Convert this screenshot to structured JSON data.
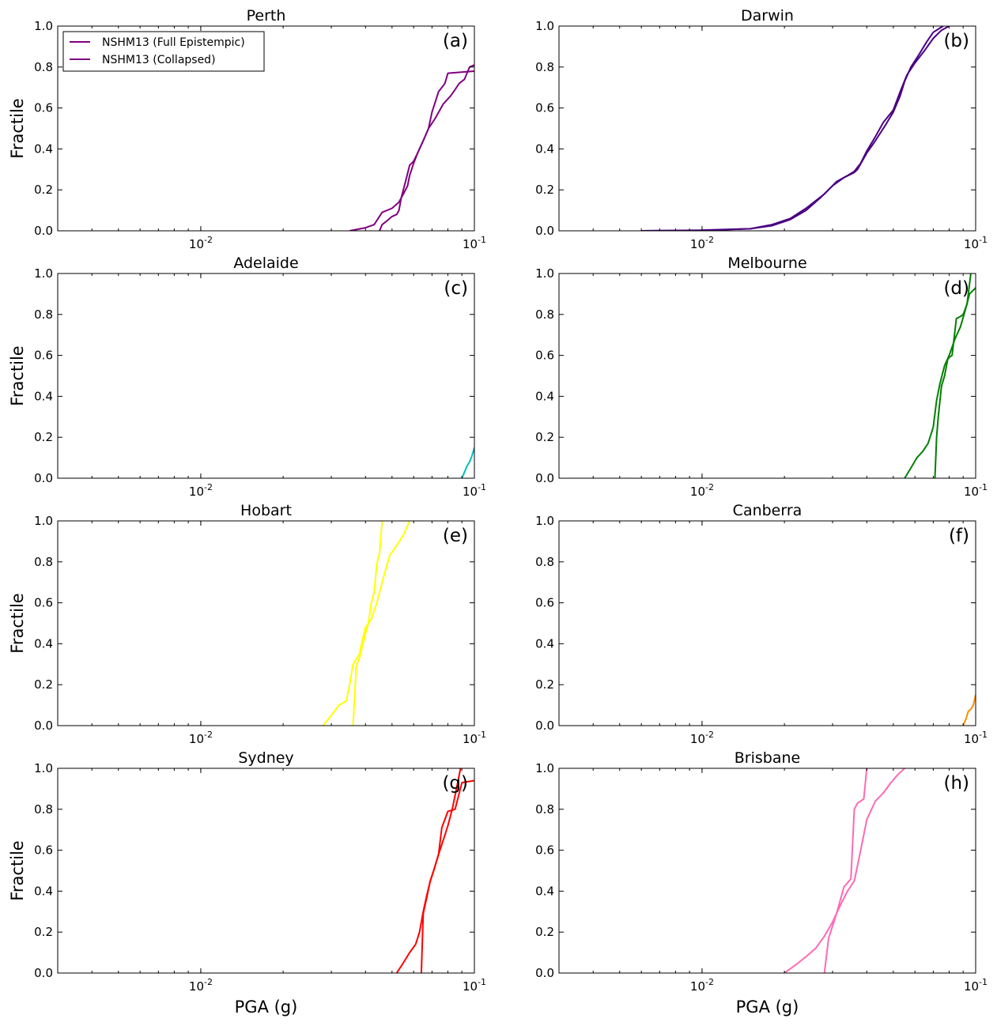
{
  "chart_data": {
    "type": "line",
    "layout": "4x2 grid",
    "xscale": "log",
    "xlim": [
      0.003,
      0.1
    ],
    "ylim": [
      0,
      1
    ],
    "xticks": [
      {
        "value": 0.01,
        "base": "10",
        "exp": "-2"
      },
      {
        "value": 0.1,
        "base": "10",
        "exp": "-1"
      }
    ],
    "yticks": [
      "0.0",
      "0.2",
      "0.4",
      "0.6",
      "0.8",
      "1.0"
    ],
    "ylabel": "Fractile",
    "xlabel": "PGA (g)",
    "legend": {
      "placement": "top-left",
      "entries": [
        "NSHM13 (Full Epistempic)",
        "NSHM13 (Collapsed)"
      ]
    },
    "panels": [
      {
        "title": "Perth",
        "tag": "(a)",
        "color": "#800080",
        "series": [
          {
            "x": [
              0.035,
              0.04,
              0.043,
              0.046,
              0.05,
              0.053,
              0.055,
              0.057,
              0.058,
              0.06,
              0.062,
              0.065,
              0.068,
              0.072,
              0.077,
              0.082,
              0.085,
              0.088,
              0.092,
              0.096,
              0.1
            ],
            "y": [
              0.0,
              0.015,
              0.03,
              0.09,
              0.11,
              0.14,
              0.18,
              0.22,
              0.27,
              0.33,
              0.38,
              0.44,
              0.5,
              0.55,
              0.62,
              0.66,
              0.69,
              0.72,
              0.74,
              0.8,
              0.81
            ]
          },
          {
            "x": [
              0.045,
              0.046,
              0.048,
              0.05,
              0.052,
              0.053,
              0.054,
              0.056,
              0.058,
              0.06,
              0.062,
              0.064,
              0.066,
              0.068,
              0.07,
              0.072,
              0.074,
              0.076,
              0.078,
              0.08,
              0.1
            ],
            "y": [
              0.0,
              0.03,
              0.05,
              0.07,
              0.08,
              0.1,
              0.16,
              0.24,
              0.32,
              0.34,
              0.38,
              0.42,
              0.46,
              0.5,
              0.58,
              0.63,
              0.68,
              0.7,
              0.72,
              0.77,
              0.78
            ]
          }
        ]
      },
      {
        "title": "Darwin",
        "tag": "(b)",
        "color": "#4b0082",
        "series": [
          {
            "x": [
              0.006,
              0.01,
              0.015,
              0.018,
              0.021,
              0.024,
              0.028,
              0.031,
              0.034,
              0.036,
              0.038,
              0.04,
              0.043,
              0.046,
              0.05,
              0.053,
              0.056,
              0.06,
              0.065,
              0.07,
              0.075,
              0.08
            ],
            "y": [
              0.0,
              0.003,
              0.01,
              0.03,
              0.06,
              0.11,
              0.18,
              0.24,
              0.27,
              0.29,
              0.33,
              0.39,
              0.46,
              0.53,
              0.59,
              0.68,
              0.76,
              0.82,
              0.88,
              0.94,
              0.98,
              1.0
            ]
          },
          {
            "x": [
              0.006,
              0.01,
              0.015,
              0.018,
              0.021,
              0.024,
              0.027,
              0.03,
              0.033,
              0.036,
              0.037,
              0.04,
              0.043,
              0.047,
              0.05,
              0.053,
              0.055,
              0.058,
              0.062,
              0.066,
              0.07,
              0.076
            ],
            "y": [
              0.0,
              0.002,
              0.01,
              0.025,
              0.055,
              0.1,
              0.16,
              0.22,
              0.26,
              0.285,
              0.3,
              0.38,
              0.44,
              0.52,
              0.58,
              0.66,
              0.73,
              0.8,
              0.86,
              0.92,
              0.97,
              1.0
            ]
          }
        ]
      },
      {
        "title": "Adelaide",
        "tag": "(c)",
        "color": "#00bfbf",
        "series": [
          {
            "x": [
              0.09,
              0.092,
              0.094,
              0.096,
              0.098,
              0.1
            ],
            "y": [
              0.0,
              0.03,
              0.06,
              0.08,
              0.11,
              0.15
            ]
          }
        ]
      },
      {
        "title": "Melbourne",
        "tag": "(d)",
        "color": "#008000",
        "series": [
          {
            "x": [
              0.055,
              0.058,
              0.061,
              0.064,
              0.067,
              0.07,
              0.072,
              0.074,
              0.077,
              0.08,
              0.084,
              0.088,
              0.092,
              0.095,
              0.1
            ],
            "y": [
              0.0,
              0.05,
              0.1,
              0.13,
              0.17,
              0.25,
              0.38,
              0.46,
              0.55,
              0.6,
              0.68,
              0.74,
              0.83,
              0.9,
              0.93
            ]
          },
          {
            "x": [
              0.071,
              0.072,
              0.073,
              0.075,
              0.077,
              0.079,
              0.08,
              0.082,
              0.085,
              0.088,
              0.09,
              0.093,
              0.096
            ],
            "y": [
              0.0,
              0.2,
              0.3,
              0.45,
              0.5,
              0.58,
              0.59,
              0.6,
              0.78,
              0.79,
              0.8,
              0.85,
              1.0
            ]
          }
        ]
      },
      {
        "title": "Hobart",
        "tag": "(e)",
        "color": "#ffff00",
        "series": [
          {
            "x": [
              0.028,
              0.03,
              0.032,
              0.034,
              0.035,
              0.036,
              0.038,
              0.039,
              0.04,
              0.042,
              0.044,
              0.046,
              0.049,
              0.052,
              0.055,
              0.058
            ],
            "y": [
              0.0,
              0.05,
              0.1,
              0.12,
              0.2,
              0.3,
              0.35,
              0.42,
              0.48,
              0.52,
              0.6,
              0.7,
              0.83,
              0.88,
              0.93,
              1.0
            ]
          },
          {
            "x": [
              0.036,
              0.037,
              0.038,
              0.04,
              0.041,
              0.042,
              0.043,
              0.044,
              0.045,
              0.046
            ],
            "y": [
              0.0,
              0.29,
              0.33,
              0.45,
              0.5,
              0.6,
              0.65,
              0.79,
              0.84,
              1.0
            ]
          }
        ]
      },
      {
        "title": "Canberra",
        "tag": "(f)",
        "color": "#ff8c00",
        "series": [
          {
            "x": [
              0.09,
              0.092,
              0.094,
              0.096,
              0.098,
              0.1
            ],
            "y": [
              0.0,
              0.03,
              0.07,
              0.08,
              0.1,
              0.15
            ]
          }
        ]
      },
      {
        "title": "Sydney",
        "tag": "(g)",
        "color": "#ff0000",
        "series": [
          {
            "x": [
              0.052,
              0.055,
              0.058,
              0.061,
              0.063,
              0.065,
              0.067,
              0.069,
              0.071,
              0.074,
              0.077,
              0.08,
              0.083,
              0.086,
              0.089
            ],
            "y": [
              0.0,
              0.05,
              0.1,
              0.14,
              0.2,
              0.3,
              0.38,
              0.45,
              0.5,
              0.58,
              0.65,
              0.72,
              0.8,
              0.9,
              1.0
            ]
          },
          {
            "x": [
              0.064,
              0.065,
              0.067,
              0.069,
              0.071,
              0.074,
              0.076,
              0.08,
              0.085,
              0.09,
              0.1
            ],
            "y": [
              0.0,
              0.29,
              0.37,
              0.45,
              0.5,
              0.58,
              0.71,
              0.79,
              0.8,
              0.93,
              0.94
            ]
          }
        ]
      },
      {
        "title": "Brisbane",
        "tag": "(h)",
        "color": "#ff69b4",
        "series": [
          {
            "x": [
              0.02,
              0.022,
              0.024,
              0.026,
              0.028,
              0.03,
              0.032,
              0.034,
              0.036,
              0.038,
              0.04,
              0.043,
              0.046,
              0.049,
              0.052,
              0.055
            ],
            "y": [
              0.0,
              0.04,
              0.08,
              0.12,
              0.18,
              0.25,
              0.33,
              0.4,
              0.45,
              0.6,
              0.75,
              0.84,
              0.88,
              0.93,
              0.97,
              1.0
            ]
          },
          {
            "x": [
              0.028,
              0.029,
              0.031,
              0.033,
              0.035,
              0.036,
              0.037,
              0.038,
              0.039,
              0.04
            ],
            "y": [
              0.0,
              0.17,
              0.29,
              0.42,
              0.46,
              0.8,
              0.83,
              0.84,
              0.85,
              1.0
            ]
          }
        ]
      }
    ]
  }
}
